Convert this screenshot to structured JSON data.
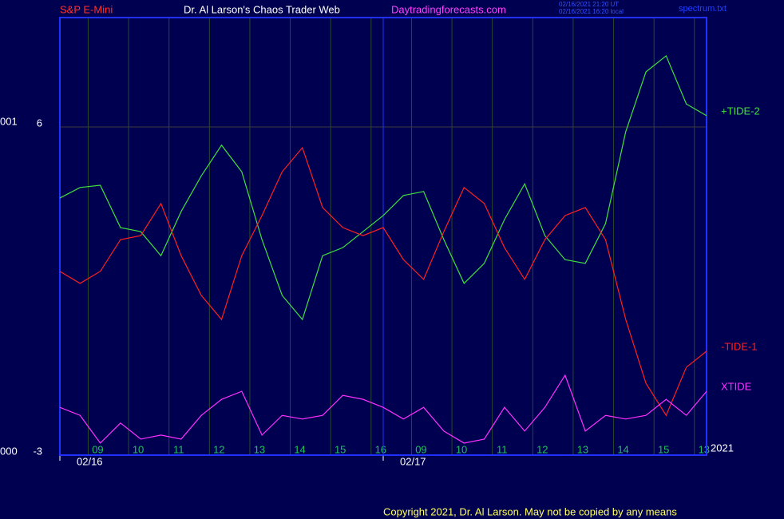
{
  "chart_data": {
    "type": "line",
    "header": [
      "S&P E-Mini",
      "Dr. Al Larson's Chaos Trader Web",
      "Daytradingforecasts.com"
    ],
    "header_colors": [
      "#ff3030",
      "#ffffff",
      "#ff40ff"
    ],
    "timestamps": [
      "02/16/2021 21:20 UT",
      "02/16/2021 16:20 local"
    ],
    "file_name": "spectrum.txt",
    "footer": "Copyright 2021, Dr. Al Larson. May not be copied by any means",
    "year": "2021",
    "left_labels": [
      "001",
      "000"
    ],
    "x": [
      0,
      0.5,
      1,
      1.5,
      2,
      2.5,
      3,
      3.5,
      4,
      4.5,
      5,
      5.5,
      6,
      6.5,
      7,
      7.5,
      8,
      8.5,
      9,
      9.5,
      10,
      10.5,
      11,
      11.5,
      12,
      12.5,
      13,
      13.5,
      14,
      14.5,
      15,
      15.5,
      16
    ],
    "xlim": [
      0,
      16
    ],
    "xticks": [
      {
        "value": 0.7,
        "label": "09"
      },
      {
        "value": 1.7,
        "label": "10"
      },
      {
        "value": 2.7,
        "label": "11"
      },
      {
        "value": 3.7,
        "label": "12"
      },
      {
        "value": 4.7,
        "label": "13"
      },
      {
        "value": 5.7,
        "label": "14"
      },
      {
        "value": 6.7,
        "label": "15"
      },
      {
        "value": 7.7,
        "label": "16"
      },
      {
        "value": 8.7,
        "label": "09"
      },
      {
        "value": 9.7,
        "label": "10"
      },
      {
        "value": 10.7,
        "label": "11"
      },
      {
        "value": 11.7,
        "label": "12"
      },
      {
        "value": 12.7,
        "label": "13"
      },
      {
        "value": 13.7,
        "label": "14"
      },
      {
        "value": 14.7,
        "label": "15"
      },
      {
        "value": 15.7,
        "label": "13"
      }
    ],
    "date_ticks": [
      {
        "value": 0,
        "label": "02/16"
      },
      {
        "value": 8,
        "label": "02/17"
      }
    ],
    "ylim": [
      -3,
      9
    ],
    "yticks": [
      6,
      -3
    ],
    "grid": true,
    "series": [
      {
        "name": "+TIDE-2",
        "color": "#40e040",
        "values": [
          4.05,
          4.34,
          4.4,
          3.24,
          3.13,
          2.47,
          3.68,
          4.66,
          5.5,
          4.77,
          2.91,
          1.38,
          0.72,
          2.47,
          2.69,
          3.13,
          3.57,
          4.12,
          4.23,
          2.91,
          1.71,
          2.26,
          3.46,
          4.44,
          3.02,
          2.36,
          2.26,
          3.35,
          5.87,
          7.51,
          7.95,
          6.63,
          6.31
        ]
      },
      {
        "name": "-TIDE-1",
        "color": "#ff2020",
        "values": [
          2.04,
          1.71,
          2.04,
          2.91,
          3.02,
          3.9,
          2.47,
          1.38,
          0.72,
          2.47,
          3.57,
          4.77,
          5.43,
          3.79,
          3.24,
          3.02,
          3.24,
          2.36,
          1.82,
          3.13,
          4.34,
          3.9,
          2.69,
          1.82,
          2.91,
          3.57,
          3.79,
          2.91,
          0.72,
          -1.03,
          -1.91,
          -0.59,
          -0.15
        ]
      },
      {
        "name": "XTIDE",
        "color": "#ff30ff",
        "values": [
          -1.69,
          -1.91,
          -2.67,
          -2.12,
          -2.56,
          -2.45,
          -2.56,
          -1.91,
          -1.47,
          -1.25,
          -2.45,
          -1.91,
          -2.01,
          -1.91,
          -1.36,
          -1.47,
          -1.69,
          -2.01,
          -1.69,
          -2.34,
          -2.67,
          -2.56,
          -1.69,
          -2.34,
          -1.69,
          -0.81,
          -2.34,
          -1.91,
          -2.01,
          -1.91,
          -1.47,
          -1.91,
          -1.25
        ]
      }
    ]
  }
}
